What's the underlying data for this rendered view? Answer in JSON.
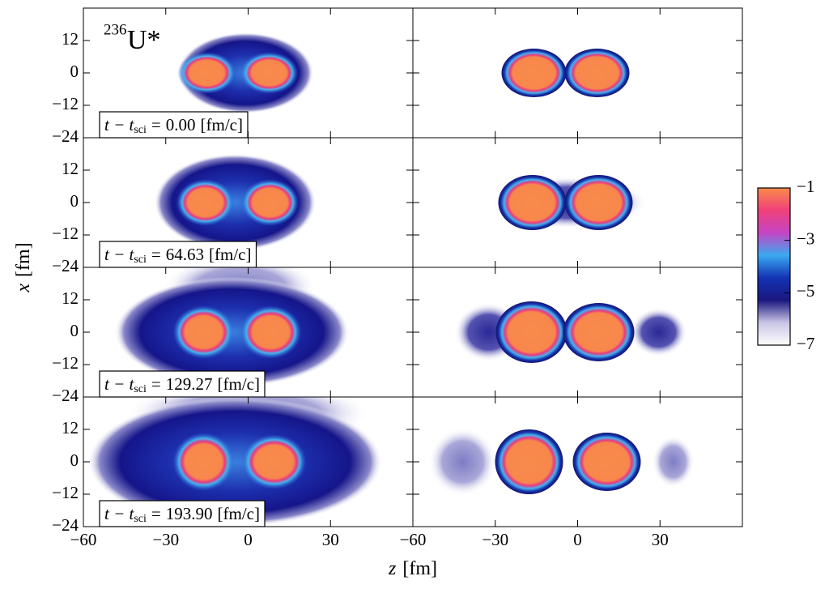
{
  "chart_data": {
    "type": "density-panels",
    "nucleus": {
      "mass": "236",
      "symbol": "U*"
    },
    "xlabel": {
      "var": "z",
      "unit": "[fm]"
    },
    "ylabel": {
      "var": "x",
      "unit": "[fm]"
    },
    "xlim": [
      -60,
      60
    ],
    "xticks": [
      {
        "value": -60,
        "label": "−60"
      },
      {
        "value": -30,
        "label": "−30"
      },
      0,
      30
    ],
    "ylim": [
      -24,
      24
    ],
    "yticks": [
      {
        "value": -24,
        "label": "−24"
      },
      {
        "value": -12,
        "label": "−12"
      },
      0,
      12
    ],
    "time_label": {
      "var": "t − t",
      "sub": "sci",
      "eq": "=",
      "unit": "[fm/c]"
    },
    "times": [
      "0.00",
      "64.63",
      "129.27",
      "193.90"
    ],
    "colorbar": {
      "lim": [
        -7,
        -1
      ],
      "ticks": [
        {
          "value": -1,
          "label": "−1"
        },
        {
          "value": -3,
          "label": "−3"
        },
        {
          "value": -5,
          "label": "−5"
        },
        {
          "value": -7,
          "label": "−7"
        }
      ],
      "colors": [
        "#ffffff",
        "#c9c5e6",
        "#1b1780",
        "#1233b4",
        "#3aa9f0",
        "#c445c4",
        "#f0407a",
        "#f98a4b"
      ]
    }
  }
}
